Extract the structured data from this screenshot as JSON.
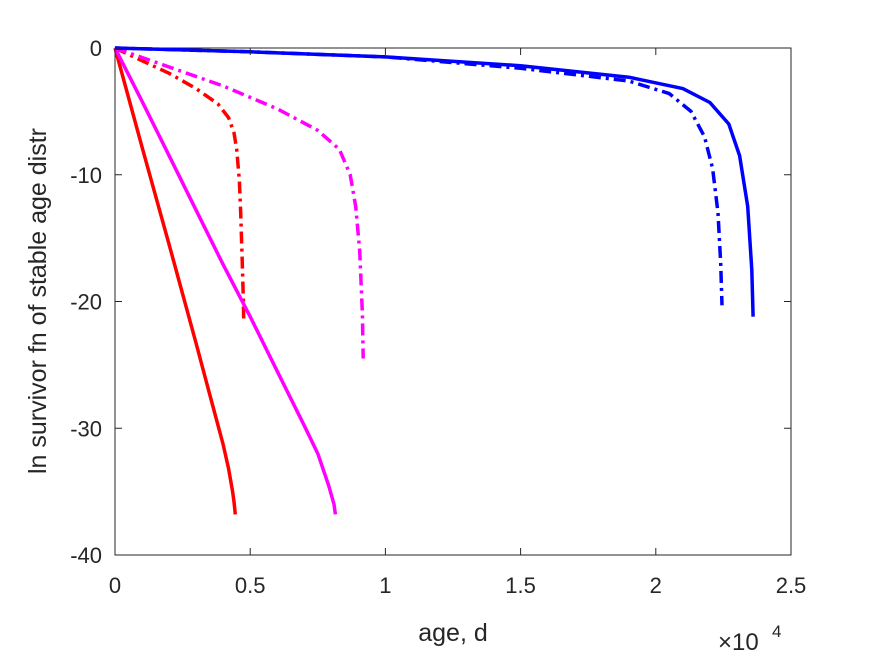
{
  "chart_data": {
    "type": "line",
    "title": "",
    "xlabel": "age, d",
    "ylabel": "ln survivor fn of stable age distr",
    "x_exponent_label": {
      "base": "×10",
      "exponent": "4"
    },
    "xlim": [
      0,
      25000
    ],
    "ylim": [
      -40,
      0
    ],
    "xticks": [
      0,
      5000,
      10000,
      15000,
      20000,
      25000
    ],
    "xtick_labels": [
      "0",
      "0.5",
      "1",
      "1.5",
      "2",
      "2.5"
    ],
    "yticks": [
      0,
      -10,
      -20,
      -30,
      -40
    ],
    "ytick_labels": [
      "0",
      "-10",
      "-20",
      "-30",
      "-40"
    ],
    "grid": false,
    "legend": "none",
    "series": [
      {
        "color": "#ff0000",
        "style": "solid",
        "x": [
          0,
          1000,
          2000,
          3000,
          3500,
          4000,
          4200,
          4350,
          4400,
          4430,
          4450
        ],
        "y": [
          0,
          -7.8,
          -15.5,
          -23.3,
          -27.3,
          -31.3,
          -33.2,
          -35.0,
          -35.8,
          -36.4,
          -36.8
        ]
      },
      {
        "color": "#ff0000",
        "style": "dashdot",
        "x": [
          0,
          1000,
          2000,
          3000,
          3800,
          4200,
          4400,
          4500,
          4600,
          4650,
          4700,
          4750,
          4760
        ],
        "y": [
          0,
          -1.0,
          -2.0,
          -3.2,
          -4.4,
          -5.5,
          -6.7,
          -8.0,
          -10.5,
          -13.0,
          -16.5,
          -20.0,
          -21.5
        ]
      },
      {
        "color": "#ff00ff",
        "style": "solid",
        "x": [
          0,
          1000,
          2000,
          3000,
          4000,
          5000,
          6000,
          7000,
          7500,
          7900,
          8100,
          8150
        ],
        "y": [
          0,
          -4.2,
          -8.5,
          -12.8,
          -17.1,
          -21.2,
          -25.5,
          -29.8,
          -32.0,
          -34.5,
          -36.0,
          -36.8
        ]
      },
      {
        "color": "#ff00ff",
        "style": "dashdot",
        "x": [
          0,
          2000,
          4000,
          6000,
          7500,
          8300,
          8700,
          8900,
          9050,
          9150,
          9180
        ],
        "y": [
          0,
          -1.5,
          -3.0,
          -4.8,
          -6.5,
          -8.0,
          -10.0,
          -12.5,
          -16.0,
          -21.0,
          -24.5
        ]
      },
      {
        "color": "#0000ff",
        "style": "solid",
        "x": [
          0,
          5000,
          10000,
          15000,
          19000,
          21000,
          22000,
          22700,
          23100,
          23400,
          23550,
          23600
        ],
        "y": [
          0,
          -0.3,
          -0.7,
          -1.4,
          -2.3,
          -3.2,
          -4.3,
          -6.0,
          -8.5,
          -12.5,
          -17.5,
          -21.2
        ]
      },
      {
        "color": "#0000ff",
        "style": "dashdot",
        "x": [
          0,
          5000,
          10000,
          15000,
          19000,
          20500,
          21300,
          21800,
          22100,
          22300,
          22400,
          22450
        ],
        "y": [
          0,
          -0.3,
          -0.7,
          -1.6,
          -2.6,
          -3.6,
          -5.0,
          -7.0,
          -9.5,
          -13.0,
          -17.0,
          -20.3
        ]
      }
    ]
  }
}
